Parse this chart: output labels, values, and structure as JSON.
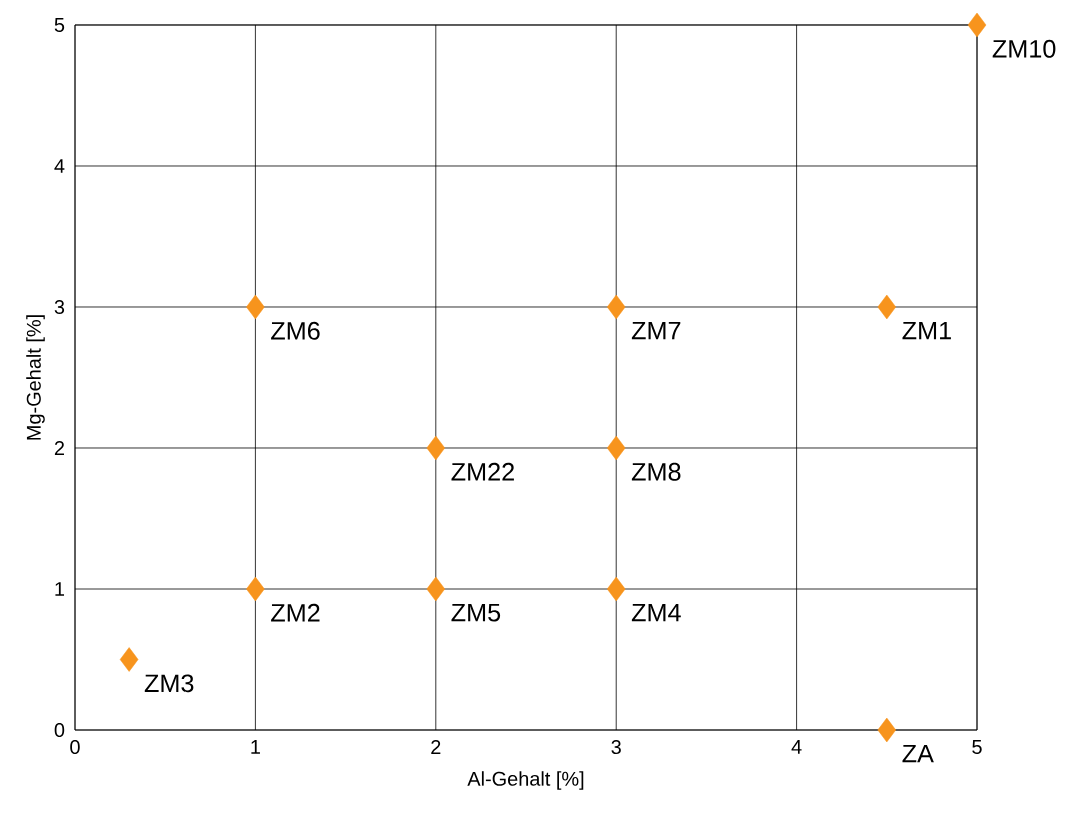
{
  "chart_data": {
    "type": "scatter",
    "xlabel": "Al-Gehalt [%]",
    "ylabel": "Mg-Gehalt [%]",
    "x": [
      5,
      3,
      4.5,
      1,
      2,
      3,
      1,
      2,
      3,
      0.3,
      4.5
    ],
    "series": [
      {
        "color": "#f7941d",
        "values": [
          5,
          3,
          3,
          3,
          2,
          2,
          1,
          1,
          1,
          0.5,
          0
        ]
      }
    ],
    "marker": "diamond",
    "grid": true,
    "xlim": [
      0,
      5
    ],
    "ylim": [
      0,
      5
    ],
    "xticks": [
      0,
      1,
      2,
      3,
      4,
      5
    ],
    "yticks": [
      0,
      1,
      2,
      3,
      4,
      5
    ],
    "annotations": [
      {
        "text": "ZM10",
        "x": 5,
        "y": 5
      },
      {
        "text": "ZM7",
        "x": 3,
        "y": 3
      },
      {
        "text": "ZM1",
        "x": 4.5,
        "y": 3
      },
      {
        "text": "ZM6",
        "x": 1,
        "y": 3
      },
      {
        "text": "ZM22",
        "x": 2,
        "y": 2
      },
      {
        "text": "ZM8",
        "x": 3,
        "y": 2
      },
      {
        "text": "ZM2",
        "x": 1,
        "y": 1
      },
      {
        "text": "ZM5",
        "x": 2,
        "y": 1
      },
      {
        "text": "ZM4",
        "x": 3,
        "y": 1
      },
      {
        "text": "ZM3",
        "x": 0.3,
        "y": 0.5
      },
      {
        "text": "ZA",
        "x": 4.5,
        "y": 0
      }
    ]
  }
}
